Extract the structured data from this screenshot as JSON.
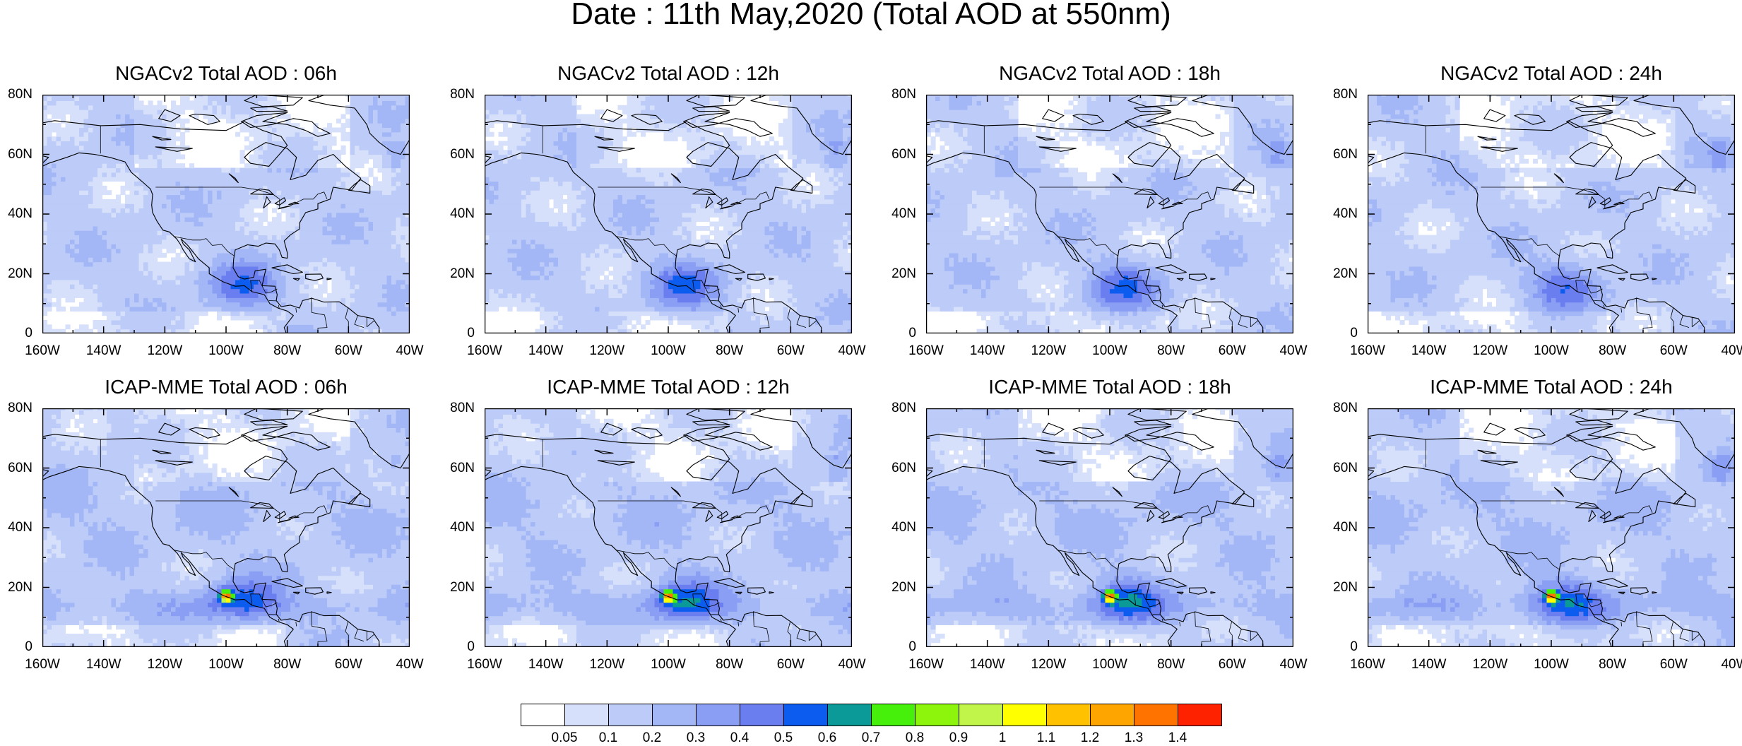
{
  "title": "Date : 11th May,2020 (Total AOD at 550nm)",
  "panels": [
    {
      "title": "NGACv2 Total AOD : 06h",
      "model": "NGACv2",
      "hour": "06h"
    },
    {
      "title": "NGACv2 Total AOD : 12h",
      "model": "NGACv2",
      "hour": "12h"
    },
    {
      "title": "NGACv2 Total AOD : 18h",
      "model": "NGACv2",
      "hour": "18h"
    },
    {
      "title": "NGACv2 Total AOD : 24h",
      "model": "NGACv2",
      "hour": "24h"
    },
    {
      "title": "ICAP-MME Total AOD : 06h",
      "model": "ICAP-MME",
      "hour": "06h"
    },
    {
      "title": "ICAP-MME Total AOD : 12h",
      "model": "ICAP-MME",
      "hour": "12h"
    },
    {
      "title": "ICAP-MME Total AOD : 18h",
      "model": "ICAP-MME",
      "hour": "18h"
    },
    {
      "title": "ICAP-MME Total AOD : 24h",
      "model": "ICAP-MME",
      "hour": "24h"
    }
  ],
  "axes": {
    "lat_labels": [
      "80N",
      "60N",
      "40N",
      "20N",
      "0"
    ],
    "lon_labels": [
      "160W",
      "140W",
      "120W",
      "100W",
      "80W",
      "60W",
      "40W"
    ],
    "lat_range": [
      0,
      80
    ],
    "lon_range": [
      -160,
      -40
    ]
  },
  "colorbar": {
    "colors": [
      "#ffffff",
      "#d6e0fb",
      "#bccbf8",
      "#a3b7f7",
      "#8a9ff4",
      "#6b7ef0",
      "#0d5cf0",
      "#0b9a98",
      "#46f00a",
      "#8cf50b",
      "#c2f54a",
      "#ffff00",
      "#ffc100",
      "#ffa500",
      "#ff7400",
      "#ff2200"
    ],
    "labels": [
      "0.05",
      "0.1",
      "0.2",
      "0.3",
      "0.4",
      "0.5",
      "0.6",
      "0.7",
      "0.8",
      "0.9",
      "1",
      "1.1",
      "1.2",
      "1.3",
      "1.4"
    ]
  }
}
